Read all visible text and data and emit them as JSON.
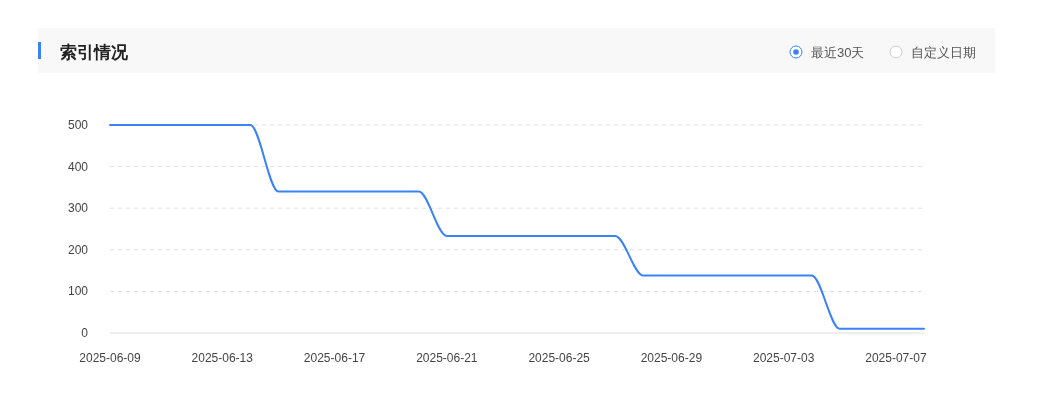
{
  "chart_data": {
    "type": "line",
    "title": "索引情况",
    "annotations": [
      "最近30天",
      "自定义日期"
    ],
    "x": [
      "2025-06-09",
      "2025-06-10",
      "2025-06-11",
      "2025-06-12",
      "2025-06-13",
      "2025-06-14",
      "2025-06-15",
      "2025-06-16",
      "2025-06-17",
      "2025-06-18",
      "2025-06-19",
      "2025-06-20",
      "2025-06-21",
      "2025-06-22",
      "2025-06-23",
      "2025-06-24",
      "2025-06-25",
      "2025-06-26",
      "2025-06-27",
      "2025-06-28",
      "2025-06-29",
      "2025-06-30",
      "2025-07-01",
      "2025-07-02",
      "2025-07-03",
      "2025-07-04",
      "2025-07-05",
      "2025-07-06",
      "2025-07-07",
      "2025-07-08"
    ],
    "series": [
      {
        "color": "#3b82f6",
        "values": [
          500,
          500,
          500,
          500,
          500,
          500,
          340,
          340,
          340,
          340,
          340,
          340,
          233,
          233,
          233,
          233,
          233,
          233,
          233,
          138,
          138,
          138,
          138,
          138,
          138,
          138,
          10,
          10,
          10,
          10
        ]
      }
    ],
    "xlim": [
      "2025-06-09",
      "2025-07-08"
    ],
    "xticks": [
      "2025-06-09",
      "2025-06-13",
      "2025-06-17",
      "2025-06-21",
      "2025-06-25",
      "2025-06-29",
      "2025-07-03",
      "2025-07-07"
    ],
    "ylim": [
      0,
      500
    ],
    "yticks": [
      0,
      100,
      200,
      300,
      400,
      500
    ],
    "grid": "y",
    "marker": "none",
    "line_style": "solid"
  }
}
